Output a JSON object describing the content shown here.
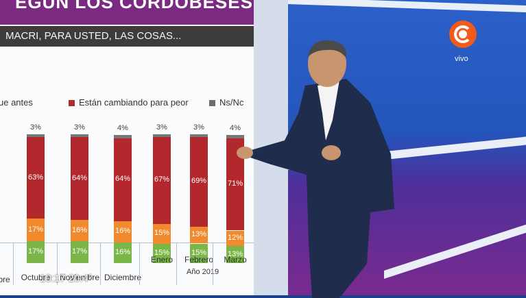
{
  "screen": {
    "title": "EGÚN LOS CORDOBESES",
    "question": "MACRI, PARA USTED, LAS COSAS..."
  },
  "legend": [
    {
      "label": "ue antes",
      "color": "#6aa84f"
    },
    {
      "label": "Están cambiando para peor",
      "color": "#b3282d"
    },
    {
      "label": "Ns/Nc",
      "color": "#6d6d6d"
    }
  ],
  "chart_data": {
    "type": "bar",
    "categories": [
      "Octubre",
      "Noviembre",
      "Diciembre",
      "Enero",
      "Febrero",
      "Marzo"
    ],
    "series": [
      {
        "name": "Están cambiando para peor",
        "values": [
          63,
          64,
          64,
          67,
          69,
          71
        ],
        "labels": [
          "63%",
          "64%",
          "64%",
          "67%",
          "69%",
          "71%"
        ]
      },
      {
        "values": [
          17,
          16,
          16,
          15,
          13,
          12
        ],
        "labels": [
          "17%",
          "16%",
          "16%",
          "15%",
          "13%",
          "12%"
        ]
      },
      {
        "values": [
          17,
          17,
          16,
          15,
          15,
          13
        ],
        "labels": [
          "17%",
          "17%",
          "16%",
          "15%",
          "15%",
          "13%"
        ]
      },
      {
        "name": "Ns/Nc",
        "values": [
          3,
          3,
          4,
          3,
          3,
          4
        ],
        "labels": [
          "3%",
          "3%",
          "4%",
          "3%",
          "3%",
          "4%"
        ]
      }
    ],
    "colors": {
      "peor": "#b3282d",
      "mid": "#f08a2c",
      "green": "#7ab648",
      "nsnc": "#777777"
    },
    "partial_first_category": "bre",
    "year_label": "Año 2019"
  },
  "overlay": {
    "clock": "10:17 20.4°",
    "logo_text": "vivo"
  }
}
